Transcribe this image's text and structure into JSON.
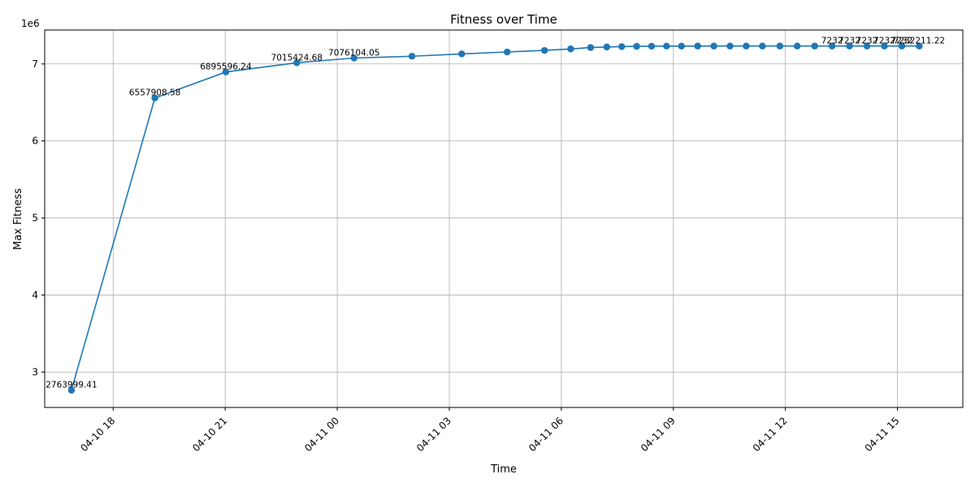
{
  "chart_data": {
    "type": "line",
    "title": "Fitness over Time",
    "xlabel": "Time",
    "ylabel": "Max Fitness",
    "y_offset_label": "1e6",
    "y_scale": 1000000,
    "grid": true,
    "series_color": "#1f77b4",
    "xlim": [
      "2025-04-10T16:10:00",
      "2025-04-11T16:45:00"
    ],
    "ylim": [
      2540000,
      7440000
    ],
    "x_ticks": [
      {
        "value": "2025-04-10T18:00:00",
        "label": "04-10 18"
      },
      {
        "value": "2025-04-10T21:00:00",
        "label": "04-10 21"
      },
      {
        "value": "2025-04-11T00:00:00",
        "label": "04-11 00"
      },
      {
        "value": "2025-04-11T03:00:00",
        "label": "04-11 03"
      },
      {
        "value": "2025-04-11T06:00:00",
        "label": "04-11 06"
      },
      {
        "value": "2025-04-11T09:00:00",
        "label": "04-11 09"
      },
      {
        "value": "2025-04-11T12:00:00",
        "label": "04-11 12"
      },
      {
        "value": "2025-04-11T15:00:00",
        "label": "04-11 15"
      }
    ],
    "y_ticks": [
      {
        "value": 3000000,
        "label": "3"
      },
      {
        "value": 4000000,
        "label": "4"
      },
      {
        "value": 5000000,
        "label": "5"
      },
      {
        "value": 6000000,
        "label": "6"
      },
      {
        "value": 7000000,
        "label": "7"
      }
    ],
    "points": [
      {
        "x": "2025-04-10T16:53:00",
        "y": 2763999.41,
        "label": "2763999.41"
      },
      {
        "x": "2025-04-10T19:07:00",
        "y": 6557908.58,
        "label": "6557908.58"
      },
      {
        "x": "2025-04-10T21:01:00",
        "y": 6895596.24,
        "label": "6895596.24"
      },
      {
        "x": "2025-04-10T22:55:00",
        "y": 7015424.68,
        "label": "7015424.68"
      },
      {
        "x": "2025-04-11T00:27:00",
        "y": 7076104.05,
        "label": "7076104.05"
      },
      {
        "x": "2025-04-11T02:00:00",
        "y": 7100000
      },
      {
        "x": "2025-04-11T03:20:00",
        "y": 7130000
      },
      {
        "x": "2025-04-11T04:33:00",
        "y": 7155000
      },
      {
        "x": "2025-04-11T05:33:00",
        "y": 7175000
      },
      {
        "x": "2025-04-11T06:15:00",
        "y": 7195000
      },
      {
        "x": "2025-04-11T06:47:00",
        "y": 7212000
      },
      {
        "x": "2025-04-11T07:13:00",
        "y": 7220000
      },
      {
        "x": "2025-04-11T07:37:00",
        "y": 7225000
      },
      {
        "x": "2025-04-11T08:01:00",
        "y": 7228000
      },
      {
        "x": "2025-04-11T08:25:00",
        "y": 7230000
      },
      {
        "x": "2025-04-11T08:49:00",
        "y": 7231000
      },
      {
        "x": "2025-04-11T09:13:00",
        "y": 7231500
      },
      {
        "x": "2025-04-11T09:39:00",
        "y": 7231800
      },
      {
        "x": "2025-04-11T10:05:00",
        "y": 7232000
      },
      {
        "x": "2025-04-11T10:31:00",
        "y": 7232100
      },
      {
        "x": "2025-04-11T10:57:00",
        "y": 7232150
      },
      {
        "x": "2025-04-11T11:23:00",
        "y": 7232180
      },
      {
        "x": "2025-04-11T11:51:00",
        "y": 7232190
      },
      {
        "x": "2025-04-11T12:19:00",
        "y": 7232195
      },
      {
        "x": "2025-04-11T12:47:00",
        "y": 7232198
      },
      {
        "x": "2025-04-11T13:15:00",
        "y": 7232200,
        "label": "7232"
      },
      {
        "x": "2025-04-11T13:43:00",
        "y": 7232200,
        "label": "7232"
      },
      {
        "x": "2025-04-11T14:11:00",
        "y": 7232200,
        "label": "7232"
      },
      {
        "x": "2025-04-11T14:39:00",
        "y": 7232200,
        "label": "7232"
      },
      {
        "x": "2025-04-11T15:07:00",
        "y": 7232200,
        "label": "7232"
      },
      {
        "x": "2025-04-11T15:35:00",
        "y": 7232211.22,
        "label": "7232211.22"
      }
    ]
  }
}
